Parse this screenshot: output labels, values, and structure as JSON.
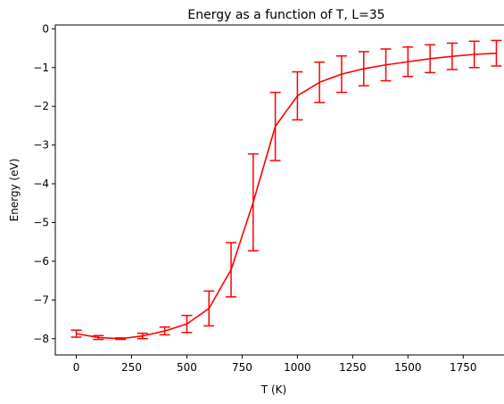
{
  "chart_data": {
    "type": "line",
    "title": "Energy as a function of T, L=35",
    "xlabel": "T (K)",
    "ylabel": "Energy (eV)",
    "xlim": [
      -95,
      1995
    ],
    "ylim": [
      -8.42,
      0.1
    ],
    "xticks": [
      0,
      250,
      500,
      750,
      1000,
      1250,
      1500,
      1750
    ],
    "yticks": [
      -8,
      -7,
      -6,
      -5,
      -4,
      -3,
      -2,
      -1,
      0
    ],
    "grid": false,
    "color": "#ff0000",
    "series": [
      {
        "x": [
          0,
          100,
          200,
          300,
          400,
          500,
          600,
          700,
          800,
          900,
          1000,
          1100,
          1200,
          1300,
          1400,
          1500,
          1600,
          1700,
          1800,
          1900
        ],
        "y": [
          -7.87,
          -7.97,
          -8.0,
          -7.93,
          -7.8,
          -7.62,
          -7.22,
          -6.22,
          -4.48,
          -2.52,
          -1.73,
          -1.38,
          -1.17,
          -1.03,
          -0.93,
          -0.85,
          -0.77,
          -0.71,
          -0.66,
          -0.63
        ],
        "yerr": [
          0.09,
          0.05,
          0.02,
          0.07,
          0.1,
          0.22,
          0.45,
          0.7,
          1.25,
          0.88,
          0.62,
          0.52,
          0.47,
          0.44,
          0.41,
          0.38,
          0.36,
          0.34,
          0.34,
          0.33
        ]
      }
    ]
  }
}
